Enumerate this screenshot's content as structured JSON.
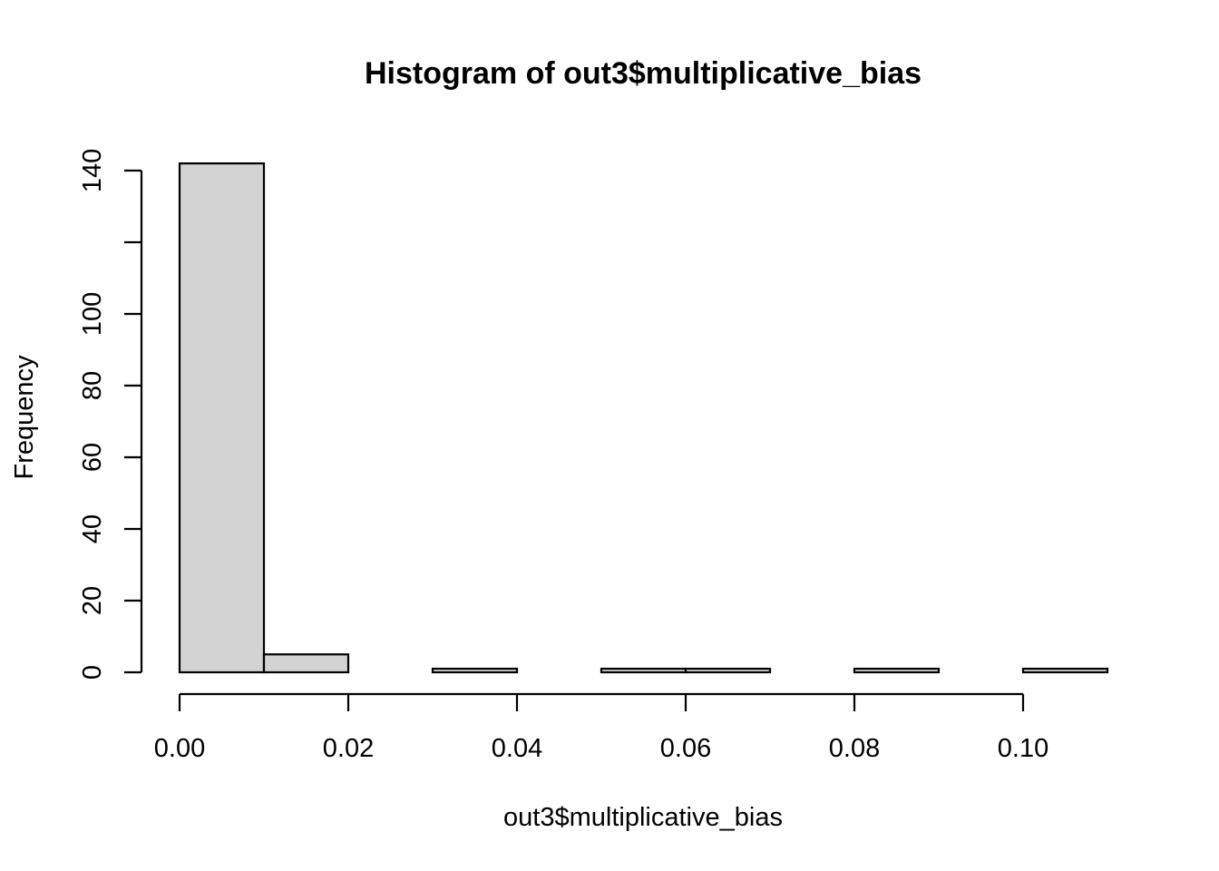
{
  "chart_data": {
    "type": "bar",
    "title": "Histogram of out3$multiplicative_bias",
    "xlabel": "out3$multiplicative_bias",
    "ylabel": "Frequency",
    "bins": [
      {
        "from": 0.0,
        "to": 0.01,
        "count": 142
      },
      {
        "from": 0.01,
        "to": 0.02,
        "count": 5
      },
      {
        "from": 0.02,
        "to": 0.03,
        "count": 0
      },
      {
        "from": 0.03,
        "to": 0.04,
        "count": 1
      },
      {
        "from": 0.04,
        "to": 0.05,
        "count": 0
      },
      {
        "from": 0.05,
        "to": 0.06,
        "count": 1
      },
      {
        "from": 0.06,
        "to": 0.07,
        "count": 1
      },
      {
        "from": 0.07,
        "to": 0.08,
        "count": 0
      },
      {
        "from": 0.08,
        "to": 0.09,
        "count": 1
      },
      {
        "from": 0.09,
        "to": 0.1,
        "count": 0
      },
      {
        "from": 0.1,
        "to": 0.11,
        "count": 1
      }
    ],
    "x_ticks": [
      0.0,
      0.02,
      0.04,
      0.06,
      0.08,
      0.1
    ],
    "x_tick_labels": [
      "0.00",
      "0.02",
      "0.04",
      "0.06",
      "0.08",
      "0.10"
    ],
    "y_ticks": [
      0,
      20,
      40,
      60,
      80,
      100,
      120,
      140
    ],
    "y_tick_labels": [
      "0",
      "20",
      "40",
      "60",
      "80",
      "100",
      "",
      "140"
    ],
    "xlim": [
      0.0,
      0.11
    ],
    "ylim": [
      0,
      140
    ],
    "bar_fill": "#d3d3d3",
    "bar_stroke": "#000000",
    "grid": false,
    "legend": "none"
  }
}
